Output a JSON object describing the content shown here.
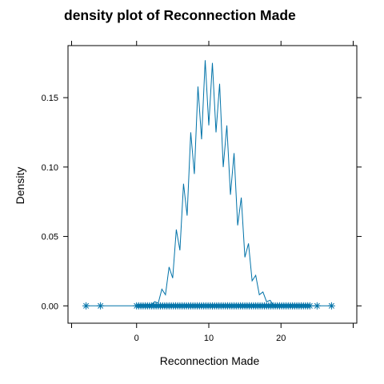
{
  "chart_data": {
    "type": "line",
    "title": "density plot of Reconnection Made",
    "xlabel": "Reconnection Made",
    "ylabel": "Density",
    "xlim": [
      -9.5,
      30.5
    ],
    "ylim": [
      -0.0125,
      0.1875
    ],
    "x_ticks": [
      0,
      10,
      20
    ],
    "y_ticks": [
      0.0,
      0.05,
      0.1,
      0.15
    ],
    "x_tick_labels": [
      "0",
      "10",
      "20"
    ],
    "y_tick_labels": [
      "0.00",
      "0.05",
      "0.10",
      "0.15"
    ],
    "grid": false,
    "series": [
      {
        "color": "#0072A8",
        "density_curve": {
          "x": [
            -7.0,
            0.0,
            0.5,
            1.0,
            1.5,
            2.0,
            2.5,
            3.0,
            3.5,
            4.0,
            4.5,
            5.0,
            5.5,
            6.0,
            6.5,
            7.0,
            7.5,
            8.0,
            8.5,
            9.0,
            9.5,
            10.0,
            10.5,
            11.0,
            11.5,
            12.0,
            12.5,
            13.0,
            13.5,
            14.0,
            14.5,
            15.0,
            15.5,
            16.0,
            16.5,
            17.0,
            17.5,
            18.0,
            18.5,
            19.0,
            20.0,
            22.0,
            25.0,
            27.0
          ],
          "y": [
            0.0,
            0.0,
            0.0005,
            0.0,
            0.001,
            0.0005,
            0.003,
            0.002,
            0.012,
            0.008,
            0.028,
            0.02,
            0.055,
            0.04,
            0.088,
            0.065,
            0.125,
            0.095,
            0.158,
            0.12,
            0.177,
            0.13,
            0.175,
            0.125,
            0.16,
            0.1,
            0.13,
            0.08,
            0.11,
            0.058,
            0.078,
            0.035,
            0.045,
            0.018,
            0.022,
            0.008,
            0.01,
            0.003,
            0.004,
            0.0,
            0.0,
            0.0,
            0.0,
            0.0
          ]
        },
        "rug_points": [
          -7.0,
          -5.0,
          0.0,
          0.3,
          0.6,
          0.9,
          1.2,
          1.5,
          1.8,
          2.1,
          2.4,
          2.7,
          3.0,
          3.3,
          3.6,
          3.9,
          4.2,
          4.5,
          4.8,
          5.1,
          5.4,
          5.7,
          6.0,
          6.3,
          6.6,
          6.9,
          7.2,
          7.5,
          7.8,
          8.1,
          8.4,
          8.7,
          9.0,
          9.3,
          9.6,
          9.9,
          10.2,
          10.5,
          10.8,
          11.1,
          11.4,
          11.7,
          12.0,
          12.3,
          12.6,
          12.9,
          13.2,
          13.5,
          13.8,
          14.1,
          14.4,
          14.7,
          15.0,
          15.3,
          15.6,
          15.9,
          16.2,
          16.5,
          16.8,
          17.1,
          17.4,
          17.7,
          18.0,
          18.3,
          18.6,
          18.9,
          19.2,
          19.5,
          19.8,
          20.1,
          20.4,
          20.7,
          21.0,
          21.3,
          21.6,
          21.9,
          22.2,
          22.5,
          22.8,
          23.1,
          23.4,
          23.7,
          24.0,
          25.0,
          27.0
        ]
      }
    ]
  }
}
